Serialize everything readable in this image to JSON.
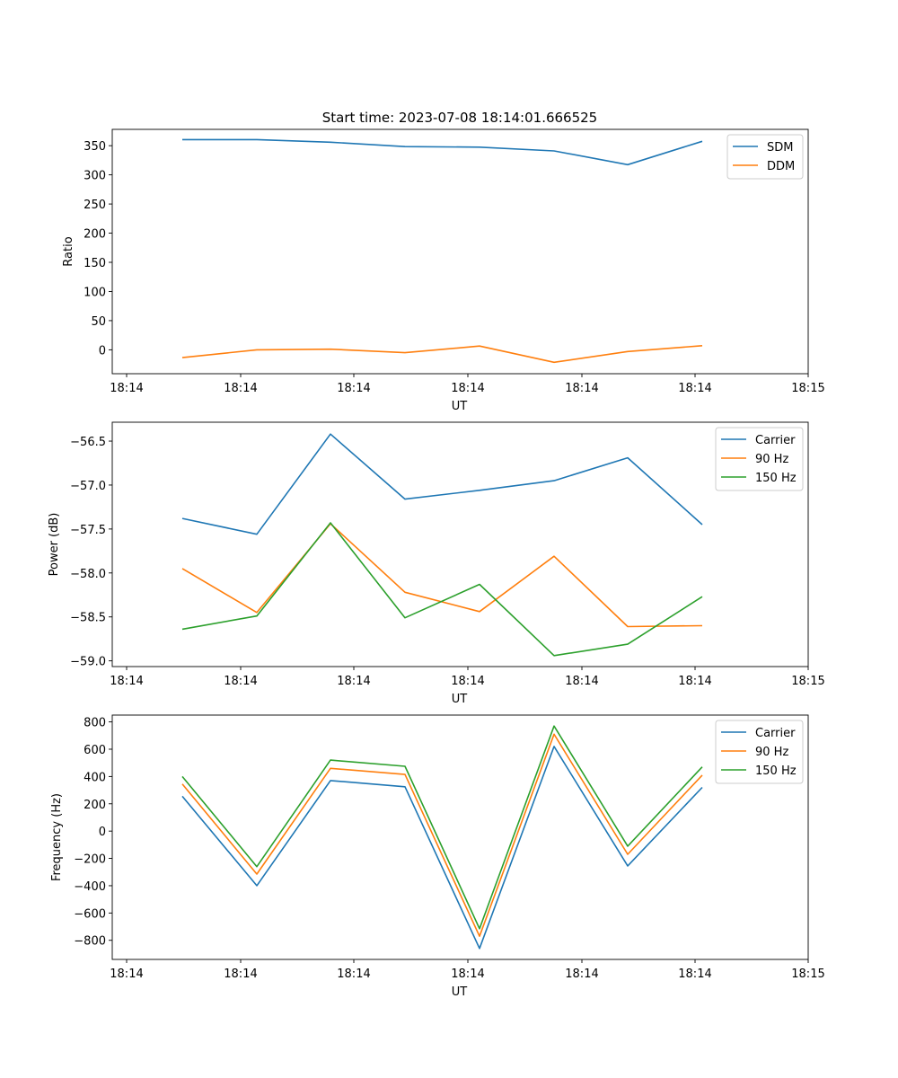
{
  "figure": {
    "title": "Start time: 2023-07-08 18:14:01.666525"
  },
  "colors": {
    "blue": "#1f77b4",
    "orange": "#ff7f0e",
    "green": "#2ca02c"
  },
  "chart_data": [
    {
      "type": "line",
      "title": "Start time: 2023-07-08 18:14:01.666525",
      "xlabel": "UT",
      "ylabel": "Ratio",
      "x_tick_labels": [
        "18:14",
        "18:14",
        "18:14",
        "18:14",
        "18:14",
        "18:14",
        "18:14",
        "18:15"
      ],
      "y_ticks": [
        0,
        50,
        100,
        150,
        200,
        250,
        300,
        350
      ],
      "y_tick_labels": [
        "0",
        "50",
        "100",
        "150",
        "200",
        "250",
        "300",
        "350"
      ],
      "ylim": [
        -41,
        378
      ],
      "legend_position": "top-right",
      "series": [
        {
          "name": "SDM",
          "color": "#1f77b4",
          "values": [
            360.5,
            360.5,
            356,
            348.5,
            347.5,
            341,
            317.5,
            357.5
          ]
        },
        {
          "name": "DDM",
          "color": "#ff7f0e",
          "values": [
            -13.5,
            0,
            1,
            -5,
            6.5,
            -21.5,
            -3,
            7
          ]
        }
      ]
    },
    {
      "type": "line",
      "xlabel": "UT",
      "ylabel": "Power (dB)",
      "x_tick_labels": [
        "18:14",
        "18:14",
        "18:14",
        "18:14",
        "18:14",
        "18:14",
        "18:14",
        "18:15"
      ],
      "y_ticks": [
        -59.0,
        -58.5,
        -58.0,
        -57.5,
        -57.0,
        -56.5
      ],
      "y_tick_labels": [
        "−59.0",
        "−58.5",
        "−58.0",
        "−57.5",
        "−57.0",
        "−56.5"
      ],
      "ylim": [
        -59.065,
        -56.285
      ],
      "legend_position": "top-right",
      "series": [
        {
          "name": "Carrier",
          "color": "#1f77b4",
          "values": [
            -57.38,
            -57.56,
            -56.42,
            -57.16,
            -57.06,
            -56.95,
            -56.69,
            -57.45
          ]
        },
        {
          "name": "90 Hz",
          "color": "#ff7f0e",
          "values": [
            -57.95,
            -58.45,
            -57.44,
            -58.22,
            -58.44,
            -57.81,
            -58.61,
            -58.6
          ]
        },
        {
          "name": "150 Hz",
          "color": "#2ca02c",
          "values": [
            -58.64,
            -58.49,
            -57.43,
            -58.51,
            -58.13,
            -58.94,
            -58.81,
            -58.27
          ]
        }
      ]
    },
    {
      "type": "line",
      "xlabel": "UT",
      "ylabel": "Frequency (Hz)",
      "x_tick_labels": [
        "18:14",
        "18:14",
        "18:14",
        "18:14",
        "18:14",
        "18:14",
        "18:14",
        "18:15"
      ],
      "y_ticks": [
        -800,
        -600,
        -400,
        -200,
        0,
        200,
        400,
        600,
        800
      ],
      "y_tick_labels": [
        "−800",
        "−600",
        "−400",
        "−200",
        "0",
        "200",
        "400",
        "600",
        "800"
      ],
      "ylim": [
        -940,
        850
      ],
      "legend_position": "top-right",
      "series": [
        {
          "name": "Carrier",
          "color": "#1f77b4",
          "values": [
            255,
            -400,
            370,
            325,
            -860,
            620,
            -255,
            320
          ]
        },
        {
          "name": "90 Hz",
          "color": "#ff7f0e",
          "values": [
            345,
            -315,
            460,
            415,
            -770,
            710,
            -170,
            410
          ]
        },
        {
          "name": "150 Hz",
          "color": "#2ca02c",
          "values": [
            400,
            -260,
            520,
            475,
            -715,
            770,
            -110,
            470
          ]
        }
      ]
    }
  ]
}
